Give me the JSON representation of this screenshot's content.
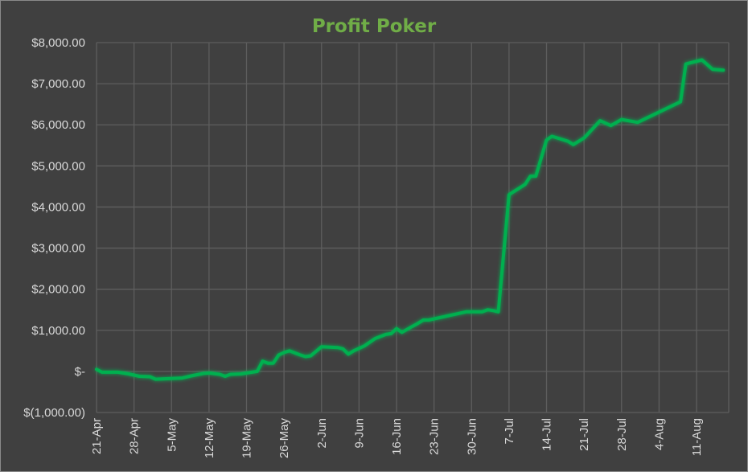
{
  "chart_data": {
    "type": "line",
    "title": "Profit Poker",
    "xlabel": "",
    "ylabel": "",
    "ylim": [
      -1000,
      8000
    ],
    "y_ticks": [
      8000,
      7000,
      6000,
      5000,
      4000,
      3000,
      2000,
      1000,
      0,
      -1000
    ],
    "y_tick_labels": [
      "$8,000.00",
      "$7,000.00",
      "$6,000.00",
      "$5,000.00",
      "$4,000.00",
      "$3,000.00",
      "$2,000.00",
      "$1,000.00",
      "$-",
      "$(1,000.00)"
    ],
    "x_range": [
      "2019-04-21",
      "2019-08-17"
    ],
    "x_ticks": [
      "2019-04-21",
      "2019-04-28",
      "2019-05-05",
      "2019-05-12",
      "2019-05-19",
      "2019-05-26",
      "2019-06-02",
      "2019-06-09",
      "2019-06-16",
      "2019-06-23",
      "2019-06-30",
      "2019-07-07",
      "2019-07-14",
      "2019-07-21",
      "2019-07-28",
      "2019-08-04",
      "2019-08-11"
    ],
    "x_tick_labels": [
      "21-Apr",
      "28-Apr",
      "5-May",
      "12-May",
      "19-May",
      "26-May",
      "2-Jun",
      "9-Jun",
      "16-Jun",
      "23-Jun",
      "30-Jun",
      "7-Jul",
      "14-Jul",
      "21-Jul",
      "28-Jul",
      "4-Aug",
      "11-Aug"
    ],
    "grid": true,
    "legend": "none",
    "line_color": "#00b050",
    "series": [
      {
        "x": [
          "2019-04-21",
          "2019-04-22",
          "2019-04-23",
          "2019-04-25",
          "2019-04-27",
          "2019-04-29",
          "2019-05-01",
          "2019-05-02",
          "2019-05-07",
          "2019-05-09",
          "2019-05-11",
          "2019-05-12",
          "2019-05-14",
          "2019-05-15",
          "2019-05-16",
          "2019-05-18",
          "2019-05-20",
          "2019-05-21",
          "2019-05-22",
          "2019-05-23",
          "2019-05-24",
          "2019-05-25",
          "2019-05-26",
          "2019-05-27",
          "2019-05-28",
          "2019-05-29",
          "2019-05-30",
          "2019-05-31",
          "2019-06-02",
          "2019-06-05",
          "2019-06-06",
          "2019-06-07",
          "2019-06-08",
          "2019-06-10",
          "2019-06-12",
          "2019-06-14",
          "2019-06-15",
          "2019-06-16",
          "2019-06-17",
          "2019-06-19",
          "2019-06-20",
          "2019-06-21",
          "2019-06-22",
          "2019-06-29",
          "2019-06-30",
          "2019-07-02",
          "2019-07-03",
          "2019-07-04",
          "2019-07-05",
          "2019-07-07",
          "2019-07-10",
          "2019-07-11",
          "2019-07-12",
          "2019-07-14",
          "2019-07-15",
          "2019-07-18",
          "2019-07-19",
          "2019-07-20",
          "2019-07-21",
          "2019-07-24",
          "2019-07-26",
          "2019-07-28",
          "2019-07-31",
          "2019-08-08",
          "2019-08-09",
          "2019-08-12",
          "2019-08-14",
          "2019-08-16"
        ],
        "values": [
          50,
          -20,
          -20,
          -20,
          -60,
          -120,
          -130,
          -190,
          -160,
          -100,
          -50,
          -40,
          -70,
          -120,
          -70,
          -60,
          -20,
          0,
          250,
          200,
          200,
          400,
          460,
          500,
          450,
          400,
          360,
          380,
          600,
          580,
          550,
          420,
          500,
          620,
          800,
          900,
          920,
          1040,
          950,
          1100,
          1170,
          1250,
          1250,
          1450,
          1450,
          1450,
          1500,
          1480,
          1450,
          4300,
          4550,
          4750,
          4750,
          5630,
          5720,
          5600,
          5520,
          5600,
          5680,
          6100,
          5980,
          6130,
          6060,
          6560,
          7480,
          7580,
          7350,
          7330
        ]
      }
    ]
  }
}
